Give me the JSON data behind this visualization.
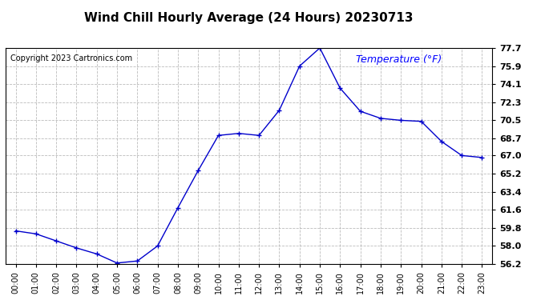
{
  "title": "Wind Chill Hourly Average (24 Hours) 20230713",
  "copyright_text": "Copyright 2023 Cartronics.com",
  "ylabel": "Temperature (°F)",
  "hours": [
    0,
    1,
    2,
    3,
    4,
    5,
    6,
    7,
    8,
    9,
    10,
    11,
    12,
    13,
    14,
    15,
    16,
    17,
    18,
    19,
    20,
    21,
    22,
    23
  ],
  "x_labels": [
    "00:00",
    "01:00",
    "02:00",
    "03:00",
    "04:00",
    "05:00",
    "06:00",
    "07:00",
    "08:00",
    "09:00",
    "10:00",
    "11:00",
    "12:00",
    "13:00",
    "14:00",
    "15:00",
    "16:00",
    "17:00",
    "18:00",
    "19:00",
    "20:00",
    "21:00",
    "22:00",
    "23:00"
  ],
  "values": [
    59.5,
    59.2,
    58.5,
    57.8,
    57.2,
    56.3,
    56.5,
    58.0,
    61.8,
    65.5,
    69.0,
    69.2,
    69.0,
    71.5,
    75.9,
    77.7,
    73.7,
    71.4,
    70.7,
    70.5,
    70.4,
    68.4,
    67.0,
    66.8
  ],
  "line_color": "#0000cc",
  "marker": "+",
  "grid_color": "#aaaaaa",
  "background_color": "#ffffff",
  "ylim_min": 56.2,
  "ylim_max": 77.7,
  "yticks": [
    56.2,
    58.0,
    59.8,
    61.6,
    63.4,
    65.2,
    67.0,
    68.7,
    70.5,
    72.3,
    74.1,
    75.9,
    77.7
  ],
  "title_color": "#000000",
  "copyright_color": "#000000",
  "ylabel_color": "#0000ff",
  "fig_bg_color": "#ffffff",
  "border_color": "#000000"
}
